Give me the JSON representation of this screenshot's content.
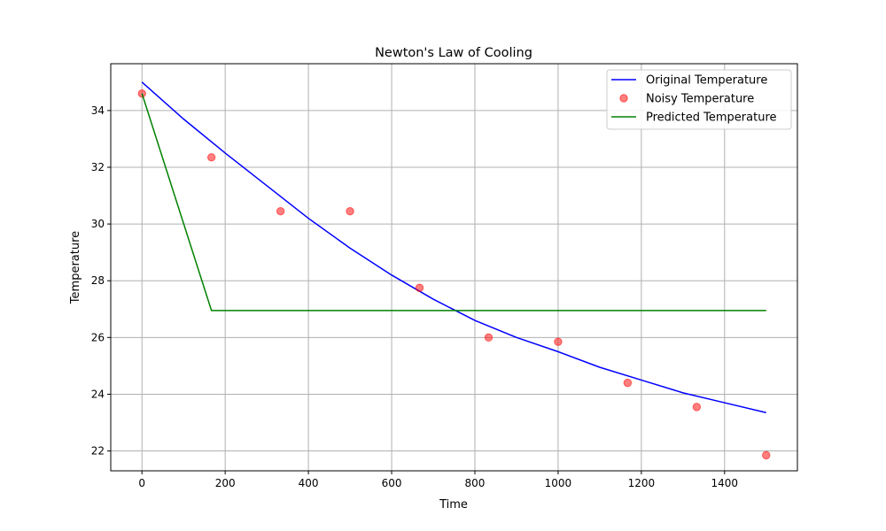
{
  "chart_data": {
    "type": "line",
    "title": "Newton's Law of Cooling",
    "xlabel": "Time",
    "ylabel": "Temperature",
    "xlim": [
      -75,
      1575
    ],
    "ylim": [
      21.3,
      35.65
    ],
    "xticks": [
      0,
      200,
      400,
      600,
      800,
      1000,
      1200,
      1400
    ],
    "yticks": [
      22,
      24,
      26,
      28,
      30,
      32,
      34
    ],
    "grid": true,
    "legend_position": "top-right",
    "series": [
      {
        "name": "Original Temperature",
        "kind": "line",
        "color": "#0000ff",
        "x": [
          0,
          100,
          200,
          300,
          400,
          500,
          600,
          700,
          800,
          900,
          1000,
          1100,
          1200,
          1300,
          1400,
          1500
        ],
        "y": [
          35.0,
          33.7,
          32.5,
          31.35,
          30.2,
          29.15,
          28.2,
          27.35,
          26.6,
          26.0,
          25.5,
          24.95,
          24.5,
          24.05,
          23.7,
          23.35
        ]
      },
      {
        "name": "Noisy Temperature",
        "kind": "scatter",
        "color": "#ff0000",
        "x": [
          0,
          167,
          333,
          500,
          667,
          833,
          1000,
          1167,
          1333,
          1500
        ],
        "y": [
          34.6,
          32.35,
          30.45,
          30.45,
          27.75,
          26.0,
          25.85,
          24.4,
          23.55,
          21.85
        ]
      },
      {
        "name": "Predicted Temperature",
        "kind": "line",
        "color": "#008000",
        "x": [
          0,
          167,
          333,
          500,
          667,
          833,
          1000,
          1167,
          1333,
          1500
        ],
        "y": [
          34.6,
          26.95,
          26.95,
          26.95,
          26.95,
          26.95,
          26.95,
          26.95,
          26.95,
          26.95
        ]
      }
    ]
  }
}
